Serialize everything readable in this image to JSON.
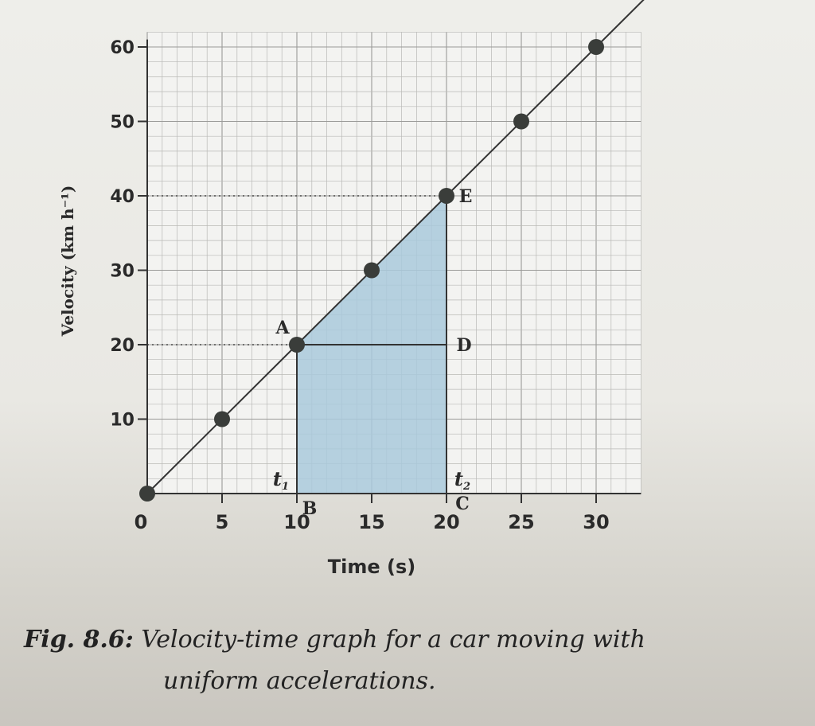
{
  "chart_data": {
    "type": "line",
    "xlabel": "Time (s)",
    "ylabel": "Velocity (km h⁻¹)",
    "xlim": [
      0,
      30
    ],
    "ylim": [
      0,
      60
    ],
    "x_ticks": [
      "0",
      "5",
      "10",
      "15",
      "20",
      "25",
      "30"
    ],
    "y_ticks": [
      "10",
      "20",
      "30",
      "40",
      "50",
      "60"
    ],
    "grid": true,
    "series": [
      {
        "points": [
          [
            0,
            0
          ],
          [
            5,
            10
          ],
          [
            10,
            20
          ],
          [
            15,
            30
          ],
          [
            20,
            40
          ],
          [
            25,
            50
          ],
          [
            30,
            60
          ]
        ]
      }
    ],
    "points_labels": [
      {
        "label": "A",
        "x": 10,
        "y": 20
      },
      {
        "label": "E",
        "x": 20,
        "y": 40
      },
      {
        "label": "D",
        "x": 20,
        "y": 20
      },
      {
        "label": "B",
        "x": 10,
        "y": 0
      },
      {
        "label": "C",
        "x": 20,
        "y": 0
      }
    ],
    "time_markers": [
      {
        "label": "t1",
        "base": "t",
        "sub": "1",
        "x": 10
      },
      {
        "label": "t2",
        "base": "t",
        "sub": "2",
        "x": 20
      }
    ],
    "shaded_region": {
      "x_from": 10,
      "x_to": 20,
      "color": "#a9c9dc"
    }
  },
  "caption": {
    "fig_label": "Fig. 8.6:",
    "text_line1": " Velocity-time graph for a car moving with",
    "text_line2": "uniform accelerations."
  }
}
